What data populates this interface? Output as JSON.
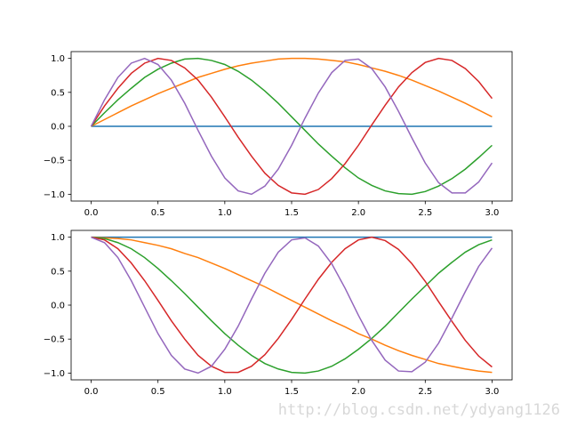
{
  "chart_data": [
    {
      "type": "line",
      "x": [
        0,
        0.1,
        0.2,
        0.3,
        0.4,
        0.5,
        0.6,
        0.7,
        0.8,
        0.9,
        1.0,
        1.1,
        1.2,
        1.3,
        1.4,
        1.5,
        1.6,
        1.7,
        1.8,
        1.9,
        2.0,
        2.1,
        2.2,
        2.3,
        2.4,
        2.5,
        2.6,
        2.7,
        2.8,
        2.9,
        3.0
      ],
      "xlim": [
        -0.15,
        3.15
      ],
      "xticks": [
        {
          "value": 0,
          "label": "0.0"
        },
        {
          "value": 0.5,
          "label": "0.5"
        },
        {
          "value": 1,
          "label": "1.0"
        },
        {
          "value": 1.5,
          "label": "1.5"
        },
        {
          "value": 2,
          "label": "2.0"
        },
        {
          "value": 2.5,
          "label": "2.5"
        },
        {
          "value": 3,
          "label": "3.0"
        }
      ],
      "ylim": [
        -1.1,
        1.1
      ],
      "yticks": [
        {
          "value": -1,
          "label": "−1.0"
        },
        {
          "value": -0.5,
          "label": "−0.5"
        },
        {
          "value": 0,
          "label": "0.0"
        },
        {
          "value": 0.5,
          "label": "0.5"
        },
        {
          "value": 1,
          "label": "1.0"
        }
      ],
      "series": [
        {
          "color": "#1f77b4",
          "values": [
            0,
            0,
            0,
            0,
            0,
            0,
            0,
            0,
            0,
            0,
            0,
            0,
            0,
            0,
            0,
            0,
            0,
            0,
            0,
            0,
            0,
            0,
            0,
            0,
            0,
            0,
            0,
            0,
            0,
            0,
            0
          ]
        },
        {
          "color": "#ff7f0e",
          "values": [
            0,
            0.1,
            0.2,
            0.3,
            0.39,
            0.48,
            0.56,
            0.64,
            0.72,
            0.78,
            0.84,
            0.89,
            0.93,
            0.96,
            0.99,
            1.0,
            1.0,
            0.99,
            0.97,
            0.95,
            0.91,
            0.86,
            0.81,
            0.75,
            0.68,
            0.6,
            0.52,
            0.43,
            0.34,
            0.24,
            0.14
          ]
        },
        {
          "color": "#2ca02c",
          "values": [
            0,
            0.2,
            0.39,
            0.56,
            0.72,
            0.84,
            0.93,
            0.99,
            1.0,
            0.97,
            0.91,
            0.81,
            0.68,
            0.52,
            0.34,
            0.14,
            -0.06,
            -0.26,
            -0.44,
            -0.61,
            -0.76,
            -0.87,
            -0.95,
            -0.99,
            -1.0,
            -0.96,
            -0.88,
            -0.77,
            -0.63,
            -0.46,
            -0.28
          ]
        },
        {
          "color": "#d62728",
          "values": [
            0,
            0.3,
            0.56,
            0.78,
            0.93,
            1.0,
            0.97,
            0.86,
            0.68,
            0.43,
            0.14,
            -0.16,
            -0.44,
            -0.69,
            -0.87,
            -0.98,
            -1.0,
            -0.93,
            -0.77,
            -0.55,
            -0.28,
            0.02,
            0.31,
            0.58,
            0.79,
            0.94,
            1.0,
            0.97,
            0.85,
            0.66,
            0.41
          ]
        },
        {
          "color": "#9467bd",
          "values": [
            0,
            0.39,
            0.72,
            0.93,
            1.0,
            0.91,
            0.68,
            0.34,
            -0.06,
            -0.44,
            -0.76,
            -0.95,
            -1.0,
            -0.88,
            -0.63,
            -0.28,
            0.12,
            0.49,
            0.79,
            0.97,
            0.99,
            0.85,
            0.58,
            0.22,
            -0.17,
            -0.54,
            -0.83,
            -0.98,
            -0.98,
            -0.82,
            -0.54
          ]
        }
      ]
    },
    {
      "type": "line",
      "x": [
        0,
        0.1,
        0.2,
        0.3,
        0.4,
        0.5,
        0.6,
        0.7,
        0.8,
        0.9,
        1.0,
        1.1,
        1.2,
        1.3,
        1.4,
        1.5,
        1.6,
        1.7,
        1.8,
        1.9,
        2.0,
        2.1,
        2.2,
        2.3,
        2.4,
        2.5,
        2.6,
        2.7,
        2.8,
        2.9,
        3.0
      ],
      "xlim": [
        -0.15,
        3.15
      ],
      "xticks": [
        {
          "value": 0,
          "label": "0.0"
        },
        {
          "value": 0.5,
          "label": "0.5"
        },
        {
          "value": 1,
          "label": "1.0"
        },
        {
          "value": 1.5,
          "label": "1.5"
        },
        {
          "value": 2,
          "label": "2.0"
        },
        {
          "value": 2.5,
          "label": "2.5"
        },
        {
          "value": 3,
          "label": "3.0"
        }
      ],
      "ylim": [
        -1.1,
        1.1
      ],
      "yticks": [
        {
          "value": -1,
          "label": "−1.0"
        },
        {
          "value": -0.5,
          "label": "−0.5"
        },
        {
          "value": 0,
          "label": "0.0"
        },
        {
          "value": 0.5,
          "label": "0.5"
        },
        {
          "value": 1,
          "label": "1.0"
        }
      ],
      "series": [
        {
          "color": "#1f77b4",
          "values": [
            1,
            1,
            1,
            1,
            1,
            1,
            1,
            1,
            1,
            1,
            1,
            1,
            1,
            1,
            1,
            1,
            1,
            1,
            1,
            1,
            1,
            1,
            1,
            1,
            1,
            1,
            1,
            1,
            1,
            1,
            1
          ]
        },
        {
          "color": "#ff7f0e",
          "values": [
            1,
            0.99,
            0.98,
            0.96,
            0.92,
            0.88,
            0.83,
            0.76,
            0.7,
            0.62,
            0.54,
            0.45,
            0.36,
            0.27,
            0.17,
            0.07,
            -0.03,
            -0.13,
            -0.23,
            -0.32,
            -0.42,
            -0.5,
            -0.59,
            -0.67,
            -0.74,
            -0.8,
            -0.86,
            -0.9,
            -0.94,
            -0.97,
            -0.99
          ]
        },
        {
          "color": "#2ca02c",
          "values": [
            1,
            0.98,
            0.92,
            0.83,
            0.7,
            0.54,
            0.36,
            0.17,
            -0.03,
            -0.23,
            -0.42,
            -0.59,
            -0.74,
            -0.86,
            -0.94,
            -0.99,
            -1.0,
            -0.97,
            -0.9,
            -0.79,
            -0.65,
            -0.49,
            -0.31,
            -0.11,
            0.09,
            0.28,
            0.47,
            0.63,
            0.78,
            0.89,
            0.96
          ]
        },
        {
          "color": "#d62728",
          "values": [
            1,
            0.96,
            0.83,
            0.62,
            0.36,
            0.07,
            -0.23,
            -0.5,
            -0.74,
            -0.9,
            -0.99,
            -0.99,
            -0.9,
            -0.73,
            -0.49,
            -0.21,
            0.09,
            0.38,
            0.63,
            0.83,
            0.96,
            1.0,
            0.95,
            0.82,
            0.61,
            0.35,
            0.05,
            -0.24,
            -0.52,
            -0.75,
            -0.91
          ]
        },
        {
          "color": "#9467bd",
          "values": [
            1,
            0.92,
            0.7,
            0.36,
            -0.03,
            -0.42,
            -0.74,
            -0.94,
            -1.0,
            -0.9,
            -0.65,
            -0.31,
            0.09,
            0.47,
            0.78,
            0.96,
            0.99,
            0.87,
            0.61,
            0.25,
            -0.15,
            -0.52,
            -0.81,
            -0.97,
            -0.98,
            -0.84,
            -0.56,
            -0.19,
            0.2,
            0.57,
            0.84
          ]
        }
      ]
    }
  ],
  "watermark": "http://blog.csdn.net/ydyang1126"
}
